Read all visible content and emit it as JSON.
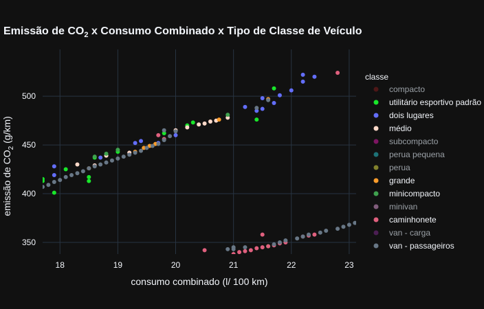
{
  "chart_data": {
    "type": "scatter",
    "title_main": "Emissão de CO",
    "title_sub": "2",
    "title_rest": " x Consumo Combinado x Tipo de Classe de Veículo",
    "xlabel": "consumo combinado (l/ 100 km)",
    "ylabel_main": "emissão de CO",
    "ylabel_sub": "2",
    "ylabel_rest": " (g/km)",
    "xlim": [
      17.7,
      23.12
    ],
    "ylim": [
      338,
      548
    ],
    "xticks": [
      18,
      19,
      20,
      21,
      22,
      23
    ],
    "yticks": [
      350,
      400,
      450,
      500
    ],
    "grid": true,
    "legend_title": "classe",
    "legend_placement": "right",
    "series": [
      {
        "name": "compacto",
        "color": "#8b1e1e",
        "hidden": true,
        "x": [],
        "y": []
      },
      {
        "name": "utilitário esportivo padrão",
        "color": "#19e62a",
        "x": [
          17.7,
          17.7,
          17.9,
          18.1,
          18.5,
          18.5,
          18.6,
          19.0,
          19.8,
          20.2,
          20.3,
          21.4,
          21.7,
          21.6
        ],
        "y": [
          415,
          413,
          401,
          425,
          417,
          413,
          437,
          443,
          462,
          470,
          473,
          476,
          508,
          346
        ]
      },
      {
        "name": "dois lugares",
        "color": "#636efa",
        "x": [
          17.9,
          17.9,
          18.7,
          19.3,
          19.4,
          19.7,
          20.0,
          21.2,
          21.4,
          21.5,
          21.5,
          21.7,
          21.8,
          22.0,
          22.2,
          22.2,
          22.4
        ],
        "y": [
          428,
          419,
          437,
          452,
          454,
          452,
          460,
          489,
          485,
          487,
          498,
          493,
          501,
          506,
          515,
          522,
          520
        ]
      },
      {
        "name": "médio",
        "color": "#ffd9c9",
        "x": [
          18.3,
          18.6,
          18.8,
          19.2,
          20.0,
          20.2,
          20.4,
          20.5,
          20.6,
          20.7,
          20.9
        ],
        "y": [
          430,
          429,
          439,
          442,
          465,
          468,
          471,
          472,
          474,
          475,
          478
        ]
      },
      {
        "name": "subcompacto",
        "color": "#e91ab3",
        "hidden": true,
        "x": [],
        "y": []
      },
      {
        "name": "perua pequena",
        "color": "#2ad4dd",
        "hidden": true,
        "x": [],
        "y": []
      },
      {
        "name": "perua",
        "color": "#f1f148",
        "hidden": true,
        "x": [],
        "y": []
      },
      {
        "name": "grande",
        "color": "#fb9c2b",
        "x": [
          18.5,
          19.3,
          19.45,
          19.55,
          19.65,
          20.75,
          21.6
        ],
        "y": [
          426,
          443,
          447,
          449,
          451,
          476,
          497
        ]
      },
      {
        "name": "minicompacto",
        "color": "#3fa14e",
        "x": [
          18.6,
          18.8,
          19.0,
          20.9
        ],
        "y": [
          438,
          441,
          445,
          481
        ]
      },
      {
        "name": "minivan",
        "color": "#f0a8e6",
        "hidden": true,
        "x": [],
        "y": []
      },
      {
        "name": "caminhonete",
        "color": "#e0607e",
        "x": [
          19.7,
          19.8,
          20.5,
          21.0,
          21.1,
          21.2,
          21.3,
          21.4,
          21.5,
          21.5,
          21.6,
          21.7,
          21.8,
          21.9,
          22.2,
          22.3,
          22.4,
          22.8
        ],
        "y": [
          460,
          456,
          342,
          338,
          340,
          341,
          342,
          344,
          345,
          358,
          346,
          347,
          349,
          350,
          356,
          357,
          358,
          524
        ]
      },
      {
        "name": "van - carga",
        "color": "#862b95",
        "hidden": true,
        "x": [],
        "y": []
      },
      {
        "name": "van - passageiros",
        "color": "#687786",
        "x": [
          17.7,
          17.8,
          17.9,
          18.0,
          18.1,
          18.2,
          18.3,
          18.4,
          18.5,
          18.6,
          18.7,
          18.8,
          18.9,
          19.0,
          19.1,
          19.2,
          19.3,
          19.4,
          19.5,
          19.6,
          19.7,
          19.8,
          19.9,
          20.0,
          21.0,
          21.2,
          21.4,
          21.6,
          21.7,
          21.8,
          21.9,
          22.1,
          22.2,
          22.3,
          22.5,
          22.6,
          22.8,
          22.9,
          23.0,
          23.1,
          19.8,
          20.9,
          21.0
        ],
        "y": [
          407,
          409,
          412,
          414,
          417,
          419,
          421,
          423,
          426,
          428,
          430,
          432,
          434,
          436,
          438,
          440,
          442,
          444,
          447,
          449,
          451,
          455,
          459,
          464,
          343,
          345,
          488,
          496,
          348,
          350,
          352,
          354,
          356,
          358,
          360,
          362,
          364,
          366,
          368,
          370,
          465,
          343,
          345
        ]
      }
    ]
  }
}
